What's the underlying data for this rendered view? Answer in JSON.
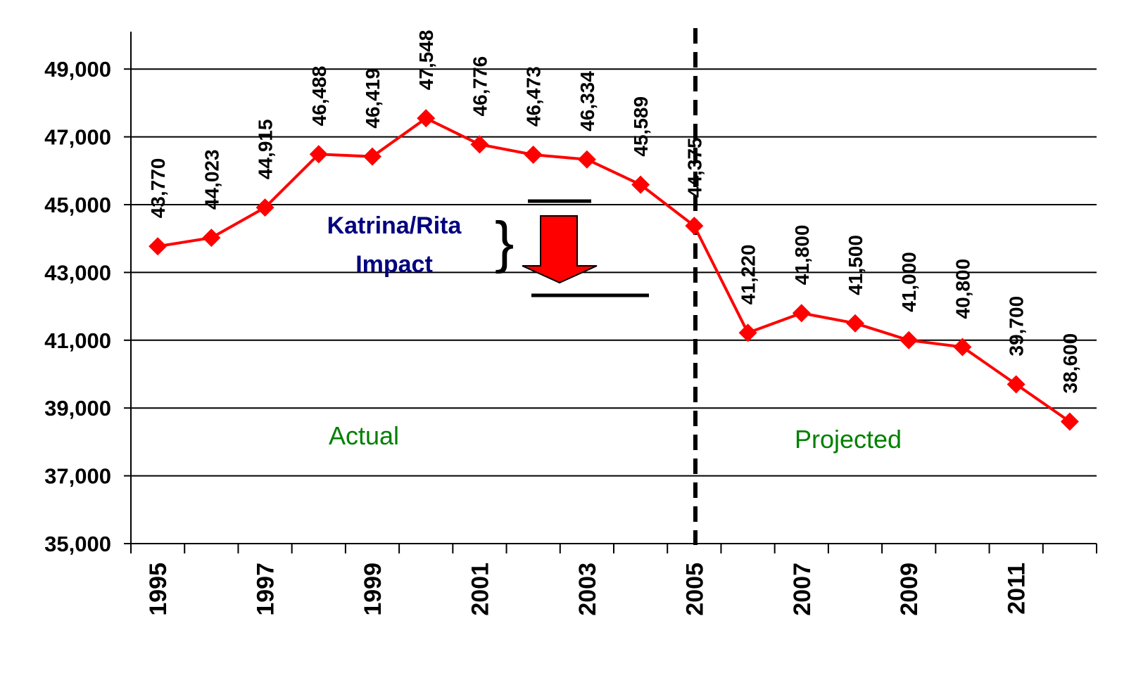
{
  "chart_data": {
    "type": "line",
    "categories": [
      "1995",
      null,
      "1997",
      null,
      "1999",
      null,
      "2001",
      null,
      "2003",
      null,
      "2005",
      null,
      "2007",
      null,
      "2009",
      null,
      "2011",
      null
    ],
    "series": [
      {
        "color": "#ff0000",
        "values": [
          43770,
          44023,
          44915,
          46488,
          46419,
          47548,
          46776,
          46473,
          46334,
          45589,
          44375,
          41220,
          41800,
          41500,
          41000,
          40800,
          39700,
          38600
        ],
        "value_labels": [
          "43,770",
          "44,023",
          "44,915",
          "46,488",
          "46,419",
          "47,548",
          "46,776",
          "46,473",
          "46,334",
          "45,589",
          "44,375",
          "41,220",
          "41,800",
          "41,500",
          "41,000",
          "40,800",
          "39,700",
          "38,600"
        ]
      }
    ],
    "ylim": [
      35000,
      50000
    ],
    "yticks": [
      {
        "value": 35000,
        "label": "35,000"
      },
      {
        "value": 37000,
        "label": "37,000"
      },
      {
        "value": 39000,
        "label": "39,000"
      },
      {
        "value": 41000,
        "label": "41,000"
      },
      {
        "value": 43000,
        "label": "43,000"
      },
      {
        "value": 45000,
        "label": "45,000"
      },
      {
        "value": 47000,
        "label": "47,000"
      },
      {
        "value": 49000,
        "label": "49,000"
      }
    ],
    "grid": true,
    "annotations": [
      "Katrina/Rita",
      "Impact",
      "Actual",
      "Projected"
    ]
  }
}
